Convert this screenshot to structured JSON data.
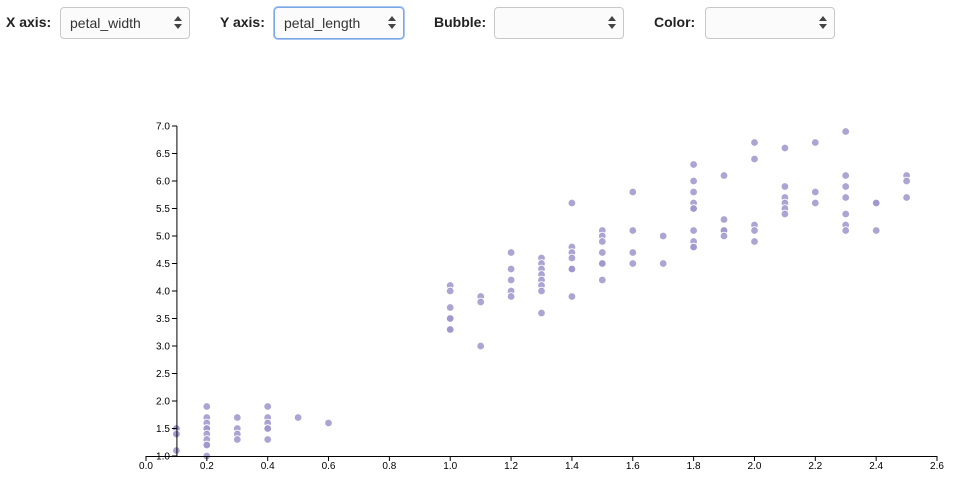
{
  "controls": {
    "x_axis": {
      "label": "X axis:",
      "value": "petal_width"
    },
    "y_axis": {
      "label": "Y axis:",
      "value": "petal_length"
    },
    "bubble": {
      "label": "Bubble:",
      "value": ""
    },
    "color": {
      "label": "Color:",
      "value": ""
    }
  },
  "colors": {
    "point": "#9d95cc",
    "axis": "#000000"
  },
  "chart_data": {
    "type": "scatter",
    "xlabel": "",
    "ylabel": "",
    "xlim": [
      0.0,
      2.6
    ],
    "ylim": [
      1.0,
      7.0
    ],
    "x_ticks": [
      "0.0",
      "0.2",
      "0.4",
      "0.6",
      "0.8",
      "1.0",
      "1.2",
      "1.4",
      "1.6",
      "1.8",
      "2.0",
      "2.2",
      "2.4",
      "2.6"
    ],
    "y_ticks": [
      "1.0",
      "1.5",
      "2.0",
      "2.5",
      "3.0",
      "3.5",
      "4.0",
      "4.5",
      "5.0",
      "5.5",
      "6.0",
      "6.5",
      "7.0"
    ],
    "points": [
      [
        0.1,
        1.5
      ],
      [
        0.1,
        1.4
      ],
      [
        0.1,
        1.1
      ],
      [
        0.1,
        1.5
      ],
      [
        0.1,
        1.4
      ],
      [
        0.2,
        1.9
      ],
      [
        0.2,
        1.7
      ],
      [
        0.2,
        1.6
      ],
      [
        0.2,
        1.5
      ],
      [
        0.2,
        1.5
      ],
      [
        0.2,
        1.4
      ],
      [
        0.2,
        1.3
      ],
      [
        0.2,
        1.2
      ],
      [
        0.2,
        1.2
      ],
      [
        0.2,
        1.0
      ],
      [
        0.3,
        1.7
      ],
      [
        0.3,
        1.5
      ],
      [
        0.3,
        1.4
      ],
      [
        0.3,
        1.3
      ],
      [
        0.4,
        1.9
      ],
      [
        0.4,
        1.7
      ],
      [
        0.4,
        1.6
      ],
      [
        0.4,
        1.5
      ],
      [
        0.4,
        1.5
      ],
      [
        0.4,
        1.3
      ],
      [
        0.5,
        1.7
      ],
      [
        0.6,
        1.6
      ],
      [
        1.0,
        4.1
      ],
      [
        1.0,
        4.0
      ],
      [
        1.0,
        3.7
      ],
      [
        1.0,
        3.5
      ],
      [
        1.0,
        3.5
      ],
      [
        1.0,
        3.3
      ],
      [
        1.0,
        3.3
      ],
      [
        1.1,
        3.9
      ],
      [
        1.1,
        3.8
      ],
      [
        1.1,
        3.0
      ],
      [
        1.2,
        4.7
      ],
      [
        1.2,
        4.4
      ],
      [
        1.2,
        4.2
      ],
      [
        1.2,
        4.0
      ],
      [
        1.2,
        3.9
      ],
      [
        1.3,
        4.6
      ],
      [
        1.3,
        4.5
      ],
      [
        1.3,
        4.4
      ],
      [
        1.3,
        4.3
      ],
      [
        1.3,
        4.2
      ],
      [
        1.3,
        4.1
      ],
      [
        1.3,
        4.0
      ],
      [
        1.3,
        3.6
      ],
      [
        1.4,
        5.6
      ],
      [
        1.4,
        4.8
      ],
      [
        1.4,
        4.7
      ],
      [
        1.4,
        4.6
      ],
      [
        1.4,
        4.4
      ],
      [
        1.4,
        4.4
      ],
      [
        1.4,
        3.9
      ],
      [
        1.5,
        5.1
      ],
      [
        1.5,
        5.0
      ],
      [
        1.5,
        4.9
      ],
      [
        1.5,
        4.7
      ],
      [
        1.5,
        4.5
      ],
      [
        1.5,
        4.5
      ],
      [
        1.5,
        4.2
      ],
      [
        1.6,
        5.8
      ],
      [
        1.6,
        5.1
      ],
      [
        1.6,
        4.7
      ],
      [
        1.6,
        4.5
      ],
      [
        1.7,
        5.0
      ],
      [
        1.7,
        4.5
      ],
      [
        1.8,
        6.3
      ],
      [
        1.8,
        6.0
      ],
      [
        1.8,
        5.8
      ],
      [
        1.8,
        5.6
      ],
      [
        1.8,
        5.5
      ],
      [
        1.8,
        5.5
      ],
      [
        1.8,
        5.1
      ],
      [
        1.8,
        4.9
      ],
      [
        1.8,
        4.8
      ],
      [
        1.8,
        4.8
      ],
      [
        1.9,
        6.1
      ],
      [
        1.9,
        5.3
      ],
      [
        1.9,
        5.1
      ],
      [
        1.9,
        5.1
      ],
      [
        1.9,
        5.0
      ],
      [
        2.0,
        6.7
      ],
      [
        2.0,
        6.4
      ],
      [
        2.0,
        5.2
      ],
      [
        2.0,
        5.1
      ],
      [
        2.0,
        4.9
      ],
      [
        2.1,
        6.6
      ],
      [
        2.1,
        5.9
      ],
      [
        2.1,
        5.7
      ],
      [
        2.1,
        5.6
      ],
      [
        2.1,
        5.5
      ],
      [
        2.1,
        5.4
      ],
      [
        2.2,
        6.7
      ],
      [
        2.2,
        5.8
      ],
      [
        2.2,
        5.6
      ],
      [
        2.3,
        6.9
      ],
      [
        2.3,
        6.1
      ],
      [
        2.3,
        5.9
      ],
      [
        2.3,
        5.7
      ],
      [
        2.3,
        5.4
      ],
      [
        2.3,
        5.2
      ],
      [
        2.3,
        5.1
      ],
      [
        2.4,
        5.6
      ],
      [
        2.4,
        5.6
      ],
      [
        2.4,
        5.1
      ],
      [
        2.5,
        6.1
      ],
      [
        2.5,
        6.0
      ],
      [
        2.5,
        5.7
      ]
    ]
  }
}
